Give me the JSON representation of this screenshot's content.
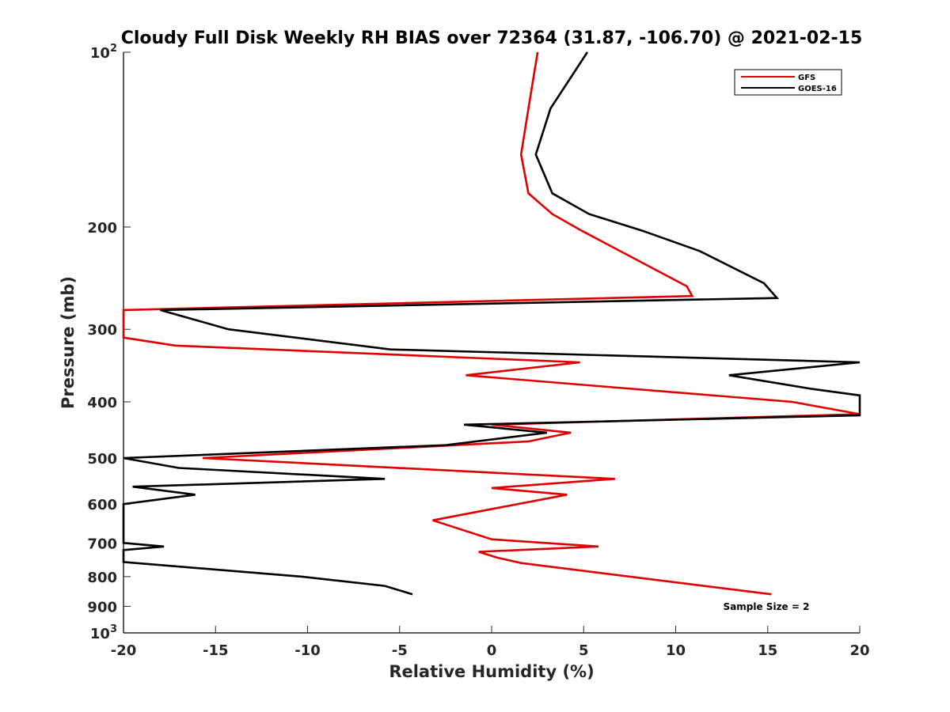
{
  "chart_data": {
    "type": "line",
    "title": "Cloudy Full Disk Weekly RH BIAS over 72364 (31.87, -106.70) @ 2021-02-15",
    "xlabel": "Relative Humidity (%)",
    "ylabel": "Pressure (mb)",
    "xlim": [
      -20,
      20
    ],
    "ylim": [
      100,
      1000
    ],
    "yscale": "log",
    "yreversed": true,
    "grid": false,
    "legend_position": "top-right",
    "x_ticks": [
      -20,
      -15,
      -10,
      -5,
      0,
      5,
      10,
      15,
      20
    ],
    "x_tick_labels": [
      "-20",
      "-15",
      "-10",
      "-5",
      "0",
      "5",
      "10",
      "15",
      "20"
    ],
    "y_ticks": [
      100,
      200,
      300,
      400,
      500,
      600,
      700,
      800,
      900,
      1000
    ],
    "y_tick_labels": [
      {
        "base": "10",
        "exp": "2"
      },
      {
        "base": "200",
        "exp": ""
      },
      {
        "base": "300",
        "exp": ""
      },
      {
        "base": "400",
        "exp": ""
      },
      {
        "base": "500",
        "exp": ""
      },
      {
        "base": "600",
        "exp": ""
      },
      {
        "base": "700",
        "exp": ""
      },
      {
        "base": "800",
        "exp": ""
      },
      {
        "base": "900",
        "exp": ""
      },
      {
        "base": "10",
        "exp": "3"
      }
    ],
    "annotation": "Sample Size = 2",
    "series": [
      {
        "name": "GFS",
        "color": "#e00000",
        "points": [
          [
            2.5,
            100
          ],
          [
            2.0,
            125
          ],
          [
            1.6,
            150
          ],
          [
            2.0,
            175
          ],
          [
            3.3,
            190
          ],
          [
            4.9,
            203
          ],
          [
            10.6,
            253
          ],
          [
            10.9,
            263
          ],
          [
            -20.0,
            278
          ],
          [
            -20.0,
            310
          ],
          [
            -17.2,
            320
          ],
          [
            4.8,
            342
          ],
          [
            -1.4,
            360
          ],
          [
            6.3,
            377
          ],
          [
            16.3,
            400
          ],
          [
            20.0,
            420
          ],
          [
            0.0,
            438
          ],
          [
            4.3,
            452
          ],
          [
            2.0,
            468
          ],
          [
            -15.7,
            500
          ],
          [
            6.7,
            543
          ],
          [
            0.0,
            563
          ],
          [
            4.1,
            578
          ],
          [
            -3.2,
            640
          ],
          [
            0.0,
            690
          ],
          [
            5.8,
            710
          ],
          [
            -0.7,
            725
          ],
          [
            0.3,
            742
          ],
          [
            1.6,
            758
          ],
          [
            15.2,
            858
          ]
        ]
      },
      {
        "name": "GOES-16",
        "color": "#000000",
        "points": [
          [
            5.2,
            100
          ],
          [
            3.2,
            125
          ],
          [
            2.4,
            150
          ],
          [
            3.3,
            175
          ],
          [
            5.3,
            190
          ],
          [
            8.2,
            203
          ],
          [
            11.3,
            220
          ],
          [
            14.8,
            250
          ],
          [
            15.5,
            265
          ],
          [
            -18.0,
            278
          ],
          [
            -14.3,
            300
          ],
          [
            -5.5,
            325
          ],
          [
            20.0,
            342
          ],
          [
            12.9,
            360
          ],
          [
            17.4,
            380
          ],
          [
            20.0,
            390
          ],
          [
            20.0,
            422
          ],
          [
            -1.5,
            438
          ],
          [
            3.0,
            452
          ],
          [
            -2.5,
            475
          ],
          [
            -20.0,
            500
          ],
          [
            -17.0,
            520
          ],
          [
            -5.8,
            543
          ],
          [
            -19.5,
            560
          ],
          [
            -16.1,
            578
          ],
          [
            -20.0,
            600
          ],
          [
            -20.0,
            700
          ],
          [
            -17.8,
            710
          ],
          [
            -20.0,
            720
          ],
          [
            -20.0,
            755
          ],
          [
            -10.3,
            800
          ],
          [
            -5.8,
            830
          ],
          [
            -4.3,
            858
          ]
        ]
      }
    ]
  }
}
